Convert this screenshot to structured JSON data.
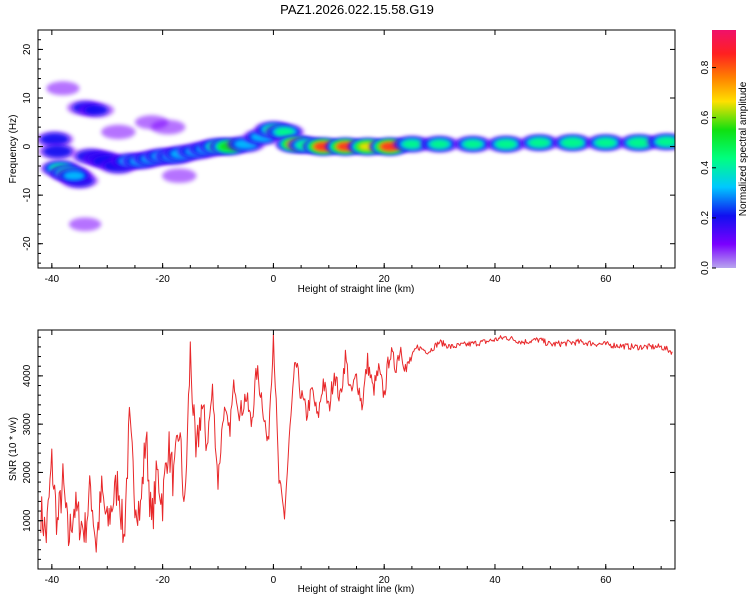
{
  "title": "PAZ1.2026.022.15.58.G19",
  "chart_data": [
    {
      "type": "heatmap",
      "xlabel": "Height of straight line (km)",
      "ylabel": "Frequency (Hz)",
      "xlim": [
        -42.5,
        72.5
      ],
      "ylim": [
        -25,
        24
      ],
      "xticks": [
        -40,
        -20,
        0,
        20,
        40,
        60
      ],
      "yticks": [
        -20,
        -10,
        0,
        10,
        20
      ],
      "colorbar": {
        "label": "Normalized spectral amplitude",
        "ticks": [
          0.0,
          0.2,
          0.4,
          0.6,
          0.8
        ],
        "range": [
          0,
          0.95
        ],
        "colormap": [
          "#b8a6ee",
          "#7a00ff",
          "#1010f0",
          "#00c8ff",
          "#00ff80",
          "#10e010",
          "#ffe000",
          "#ff8000",
          "#ff2020",
          "#f0106a"
        ]
      },
      "blobs": [
        {
          "x": -38.5,
          "f": -4.5,
          "a": 0.45
        },
        {
          "x": -37,
          "f": -5.5,
          "a": 0.5
        },
        {
          "x": -39.5,
          "f": 1.5,
          "a": 0.3
        },
        {
          "x": -39,
          "f": -1,
          "a": 0.3
        },
        {
          "x": -35,
          "f": -7,
          "a": 0.3
        },
        {
          "x": -36,
          "f": -6,
          "a": 0.35
        },
        {
          "x": -33,
          "f": -2,
          "a": 0.3
        },
        {
          "x": -31,
          "f": -2.5,
          "a": 0.3
        },
        {
          "x": -30,
          "f": -3,
          "a": 0.3
        },
        {
          "x": -28,
          "f": -4,
          "a": 0.3
        },
        {
          "x": -26,
          "f": -3,
          "a": 0.35
        },
        {
          "x": -24,
          "f": -3,
          "a": 0.35
        },
        {
          "x": -22,
          "f": -2.5,
          "a": 0.35
        },
        {
          "x": -20,
          "f": -2,
          "a": 0.38
        },
        {
          "x": -18,
          "f": -2,
          "a": 0.38
        },
        {
          "x": -16.5,
          "f": -1.5,
          "a": 0.4
        },
        {
          "x": -14,
          "f": -1,
          "a": 0.35
        },
        {
          "x": -12,
          "f": -0.5,
          "a": 0.35
        },
        {
          "x": -10,
          "f": 0,
          "a": 0.5
        },
        {
          "x": -8,
          "f": 0,
          "a": 0.65
        },
        {
          "x": -5,
          "f": 0.5,
          "a": 0.4
        },
        {
          "x": -2,
          "f": 2,
          "a": 0.4
        },
        {
          "x": 0,
          "f": 3.5,
          "a": 0.45
        },
        {
          "x": 2,
          "f": 3,
          "a": 0.45
        },
        {
          "x": 4,
          "f": 0.5,
          "a": 0.78
        },
        {
          "x": 6,
          "f": 0.3,
          "a": 0.5
        },
        {
          "x": 9,
          "f": 0,
          "a": 0.9
        },
        {
          "x": 13,
          "f": 0,
          "a": 0.85
        },
        {
          "x": 17,
          "f": 0,
          "a": 0.75
        },
        {
          "x": 21,
          "f": 0,
          "a": 0.9
        },
        {
          "x": 25,
          "f": 0.5,
          "a": 0.45
        },
        {
          "x": 30,
          "f": 0.5,
          "a": 0.45
        },
        {
          "x": 36,
          "f": 0.5,
          "a": 0.45
        },
        {
          "x": 42,
          "f": 0.5,
          "a": 0.5
        },
        {
          "x": 48,
          "f": 0.8,
          "a": 0.5
        },
        {
          "x": 54,
          "f": 0.8,
          "a": 0.55
        },
        {
          "x": 60,
          "f": 0.8,
          "a": 0.5
        },
        {
          "x": 66,
          "f": 0.8,
          "a": 0.55
        },
        {
          "x": 71,
          "f": 1,
          "a": 0.5
        },
        {
          "x": -34,
          "f": 8,
          "a": 0.22
        },
        {
          "x": -32,
          "f": 7.5,
          "a": 0.2
        },
        {
          "x": -38,
          "f": 12,
          "a": 0.12
        },
        {
          "x": -28,
          "f": 3,
          "a": 0.15
        },
        {
          "x": -22,
          "f": 5,
          "a": 0.12
        },
        {
          "x": -19,
          "f": 4,
          "a": 0.15
        },
        {
          "x": -34,
          "f": -16,
          "a": 0.1
        },
        {
          "x": -17,
          "f": -6,
          "a": 0.15
        }
      ]
    },
    {
      "type": "line",
      "xlabel": "Height of straight line (km)",
      "ylabel": "SNR (10 * v/v)",
      "xlim": [
        -42.5,
        72.5
      ],
      "ylim": [
        0,
        4950
      ],
      "xticks": [
        -40,
        -20,
        0,
        20,
        40,
        60
      ],
      "yticks": [
        1000,
        2000,
        3000,
        4000
      ],
      "color": "#e8282a",
      "x": [
        -42,
        -41,
        -40,
        -39,
        -38,
        -37,
        -36,
        -35,
        -34,
        -33,
        -32,
        -31,
        -30,
        -29,
        -28,
        -27,
        -26,
        -25,
        -24,
        -23,
        -22,
        -21,
        -20,
        -19,
        -18,
        -17,
        -16,
        -15,
        -14,
        -13,
        -12,
        -11,
        -10,
        -9,
        -8,
        -7,
        -6,
        -5,
        -4,
        -3,
        -2,
        -1,
        0,
        1,
        2,
        3,
        4,
        5,
        6,
        7,
        8,
        9,
        10,
        11,
        12,
        13,
        14,
        15,
        16,
        17,
        18,
        19,
        20,
        21,
        22,
        23,
        24,
        25,
        26,
        28,
        30,
        32,
        35,
        38,
        40,
        42,
        45,
        48,
        50,
        55,
        60,
        65,
        70,
        72
      ],
      "y": [
        1200,
        700,
        2200,
        900,
        1800,
        600,
        1300,
        1000,
        800,
        1700,
        500,
        1600,
        900,
        1400,
        1800,
        600,
        3000,
        1500,
        1200,
        2800,
        900,
        2000,
        1400,
        2600,
        1800,
        2900,
        1200,
        4500,
        2200,
        3400,
        2600,
        3700,
        1800,
        3300,
        2800,
        3900,
        3200,
        3600,
        3000,
        4100,
        3500,
        2500,
        4900,
        1800,
        1100,
        2900,
        4300,
        3600,
        3200,
        3700,
        3100,
        3900,
        3300,
        4100,
        3500,
        4400,
        3600,
        4000,
        3400,
        4300,
        3700,
        4100,
        3600,
        4500,
        4200,
        4600,
        4100,
        4400,
        4600,
        4500,
        4700,
        4600,
        4650,
        4700,
        4750,
        4800,
        4700,
        4750,
        4650,
        4700,
        4650,
        4600,
        4600,
        4500
      ]
    }
  ]
}
